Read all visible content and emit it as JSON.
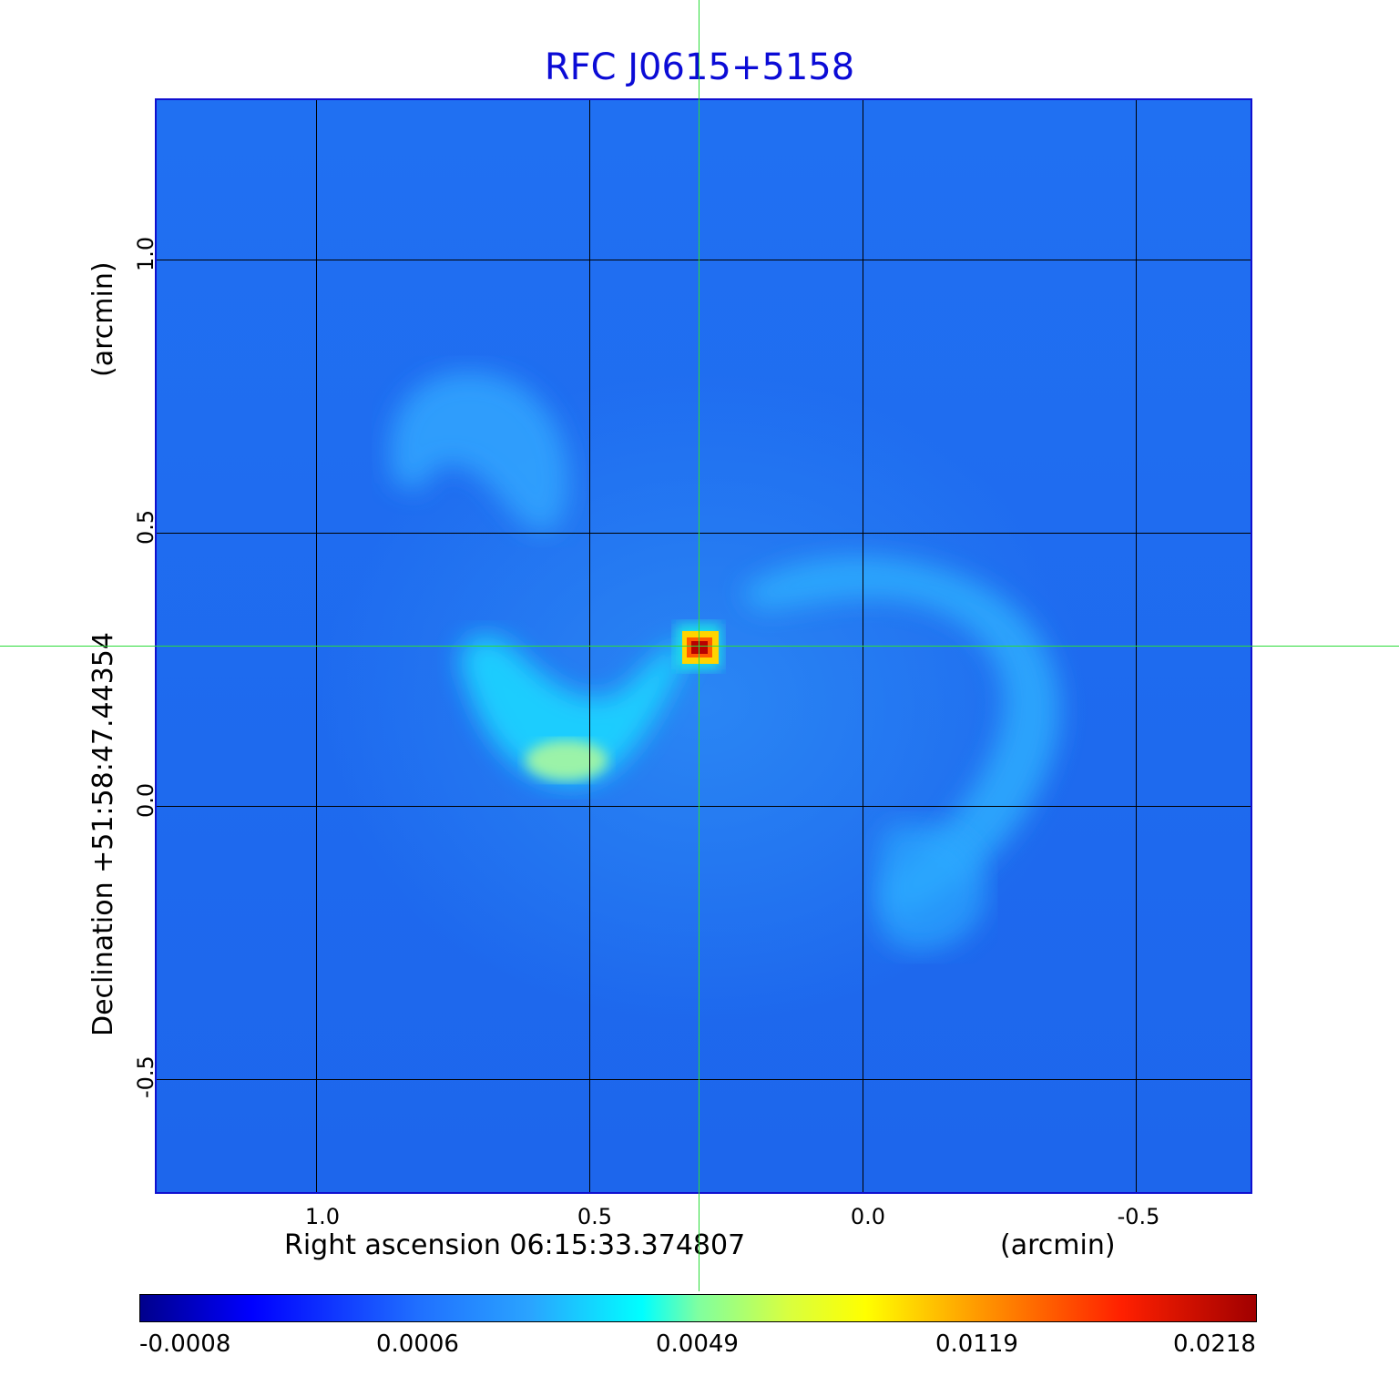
{
  "title": "RFC J0615+5158",
  "x_axis": {
    "label": "Right ascension  06:15:33.374807",
    "unit": "(arcmin)",
    "ticks": [
      "1.0",
      "0.5",
      "0.0",
      "-0.5"
    ]
  },
  "y_axis": {
    "label": "Declination  +51:58:47.44354",
    "unit": "(arcmin)",
    "ticks": [
      "1.0",
      "0.5",
      "0.0",
      "-0.5"
    ]
  },
  "colorbar": {
    "ticks": [
      "-0.0008",
      "0.0006",
      "0.0049",
      "0.0119",
      "0.0218"
    ],
    "colormap": "jet"
  },
  "colors": {
    "title": "#0b0bd6",
    "crosshair": "#2cdc3a",
    "background_map": "#1f6cf0"
  }
}
